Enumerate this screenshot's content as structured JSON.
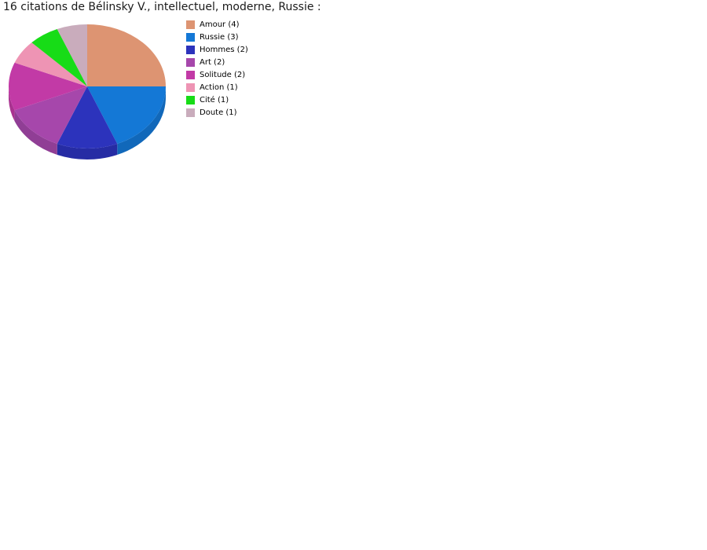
{
  "title": "16 citations de Bélinsky V., intellectuel, moderne, Russie :",
  "chart_data": {
    "type": "pie",
    "style": "3d",
    "title": "16 citations de Bélinsky V., intellectuel, moderne, Russie :",
    "total": 16,
    "start_angle": "top",
    "direction": "clockwise",
    "legend_position": "right",
    "background_color": "#ffffff",
    "slices": [
      {
        "label": "Amour",
        "value": 4,
        "legend_label": "Amour (4)",
        "color": "#DD9472"
      },
      {
        "label": "Russie",
        "value": 3,
        "legend_label": "Russie (3)",
        "color": "#1478D6"
      },
      {
        "label": "Hommes",
        "value": 2,
        "legend_label": "Hommes (2)",
        "color": "#2C33BC"
      },
      {
        "label": "Art",
        "value": 2,
        "legend_label": "Art (2)",
        "color": "#A647AB"
      },
      {
        "label": "Solitude",
        "value": 2,
        "legend_label": "Solitude (2)",
        "color": "#C23AA6"
      },
      {
        "label": "Action",
        "value": 1,
        "legend_label": "Action (1)",
        "color": "#EE94B4"
      },
      {
        "label": "Cité",
        "value": 1,
        "legend_label": "Cité (1)",
        "color": "#17DC17"
      },
      {
        "label": "Doute",
        "value": 1,
        "legend_label": "Doute (1)",
        "color": "#C9ACBC"
      }
    ]
  }
}
